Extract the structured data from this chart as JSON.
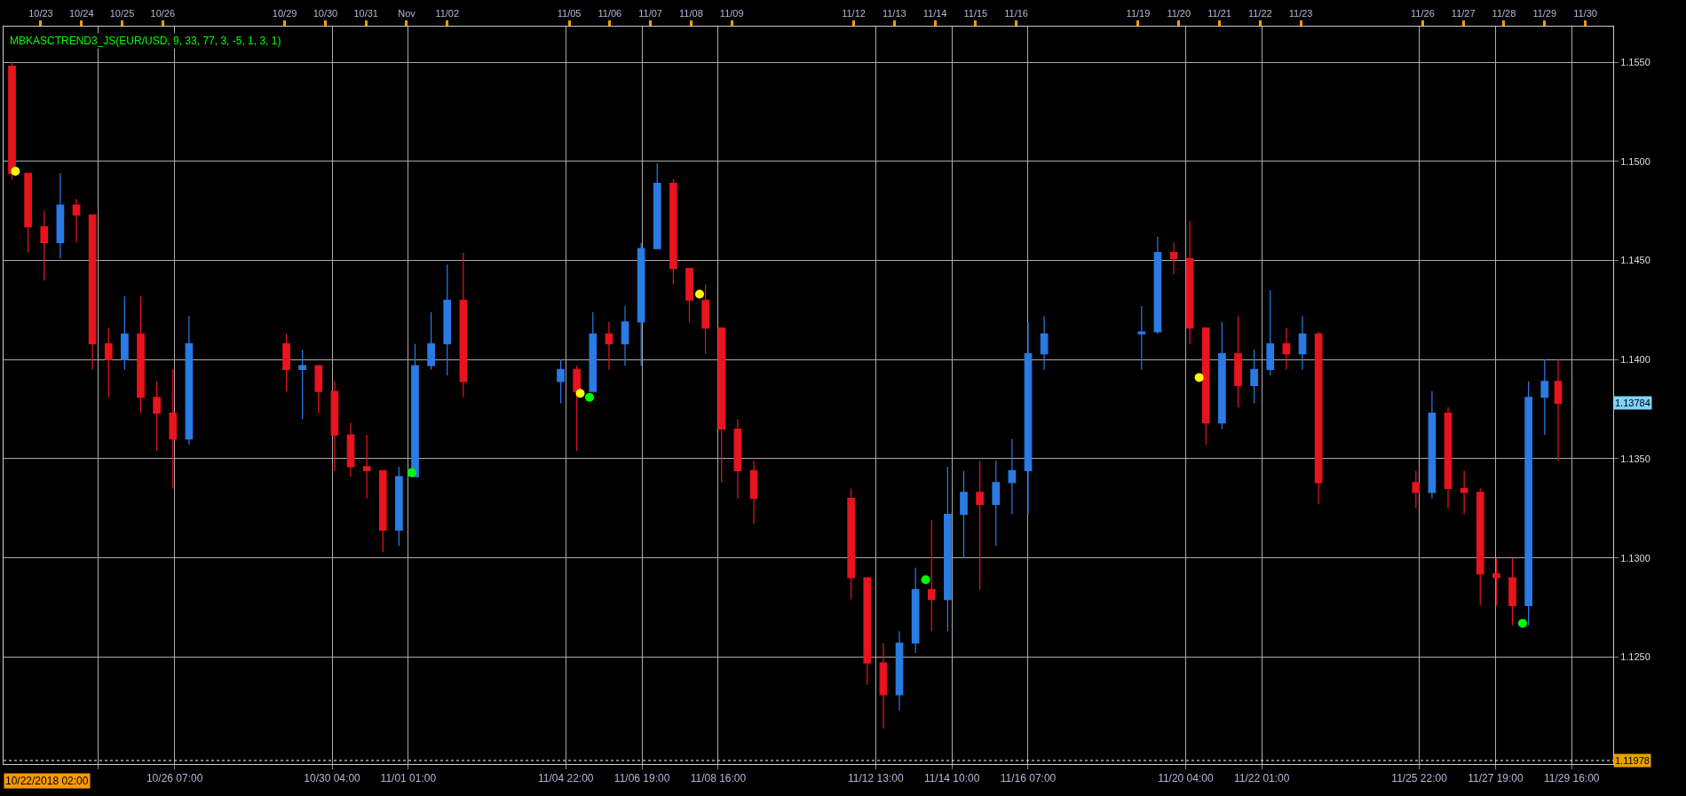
{
  "chart_data": {
    "type": "candlestick",
    "x": [
      "2018-10-22T07:00",
      "2018-10-22T16:30",
      "2018-10-23T02:00",
      "2018-10-23T11:30",
      "2018-10-23T21:00",
      "2018-10-24T06:30",
      "2018-10-24T16:00",
      "2018-10-25T01:30",
      "2018-10-25T11:00",
      "2018-10-25T20:30",
      "2018-10-26T06:00",
      "2018-10-26T15:30",
      "2018-10-29T01:00",
      "2018-10-29T10:30",
      "2018-10-29T20:00",
      "2018-10-30T05:30",
      "2018-10-30T15:00",
      "2018-10-31T00:30",
      "2018-10-31T10:00",
      "2018-10-31T19:30",
      "2018-11-01T05:00",
      "2018-11-01T14:30",
      "2018-11-02T00:00",
      "2018-11-02T09:30",
      "2018-11-04T19:00",
      "2018-11-05T04:30",
      "2018-11-05T14:00",
      "2018-11-05T23:30",
      "2018-11-06T09:00",
      "2018-11-06T18:30",
      "2018-11-07T04:00",
      "2018-11-07T13:30",
      "2018-11-07T23:00",
      "2018-11-08T08:30",
      "2018-11-08T18:00",
      "2018-11-09T03:30",
      "2018-11-09T13:00",
      "2018-11-11T22:30",
      "2018-11-12T08:00",
      "2018-11-12T17:30",
      "2018-11-13T03:00",
      "2018-11-13T12:30",
      "2018-11-13T22:00",
      "2018-11-14T07:30",
      "2018-11-14T17:00",
      "2018-11-15T02:30",
      "2018-11-15T12:00",
      "2018-11-15T21:30",
      "2018-11-16T07:00",
      "2018-11-16T16:30",
      "2018-11-19T02:00",
      "2018-11-19T11:30",
      "2018-11-19T21:00",
      "2018-11-20T06:30",
      "2018-11-20T16:00",
      "2018-11-21T01:30",
      "2018-11-21T11:00",
      "2018-11-21T20:30",
      "2018-11-22T06:00",
      "2018-11-22T15:30",
      "2018-11-23T01:00",
      "2018-11-23T10:30",
      "2018-11-25T20:00",
      "2018-11-26T05:30",
      "2018-11-26T15:00",
      "2018-11-27T00:30",
      "2018-11-27T10:00",
      "2018-11-27T19:30",
      "2018-11-28T05:00",
      "2018-11-28T14:30",
      "2018-11-29T00:00",
      "2018-11-29T08:00"
    ],
    "ohlc": [
      [
        1.1548,
        1.155,
        1.1491,
        1.1494
      ],
      [
        1.1494,
        1.1494,
        1.1454,
        1.1467
      ],
      [
        1.1467,
        1.1475,
        1.144,
        1.1459
      ],
      [
        1.1459,
        1.1494,
        1.1451,
        1.1478
      ],
      [
        1.1478,
        1.1481,
        1.1459,
        1.1473
      ],
      [
        1.1473,
        1.1473,
        1.1395,
        1.1408
      ],
      [
        1.1408,
        1.1416,
        1.1381,
        1.14
      ],
      [
        1.14,
        1.1432,
        1.1395,
        1.1413
      ],
      [
        1.1413,
        1.1432,
        1.1373,
        1.1381
      ],
      [
        1.1381,
        1.1389,
        1.1354,
        1.1373
      ],
      [
        1.1373,
        1.1395,
        1.1335,
        1.136
      ],
      [
        1.136,
        1.1422,
        1.1357,
        1.1408
      ],
      [
        1.1408,
        1.1413,
        1.1384,
        1.1395
      ],
      [
        1.1395,
        1.1405,
        1.137,
        1.1397
      ],
      [
        1.1397,
        1.1397,
        1.1373,
        1.1384
      ],
      [
        1.1384,
        1.1389,
        1.1344,
        1.1362
      ],
      [
        1.1362,
        1.1368,
        1.1341,
        1.1346
      ],
      [
        1.1346,
        1.1362,
        1.133,
        1.1344
      ],
      [
        1.1344,
        1.1344,
        1.1303,
        1.1314
      ],
      [
        1.1314,
        1.1346,
        1.1306,
        1.1341
      ],
      [
        1.1341,
        1.1408,
        1.1341,
        1.1397
      ],
      [
        1.1397,
        1.1424,
        1.1395,
        1.1408
      ],
      [
        1.1408,
        1.1448,
        1.1392,
        1.143
      ],
      [
        1.143,
        1.1454,
        1.1381,
        1.1389
      ],
      [
        1.1389,
        1.14,
        1.1378,
        1.1395
      ],
      [
        1.1395,
        1.1397,
        1.1354,
        1.1384
      ],
      [
        1.1384,
        1.1424,
        1.1384,
        1.1413
      ],
      [
        1.1413,
        1.1419,
        1.1395,
        1.1408
      ],
      [
        1.1408,
        1.1427,
        1.1397,
        1.1419
      ],
      [
        1.1419,
        1.1459,
        1.1397,
        1.1456
      ],
      [
        1.1456,
        1.1499,
        1.1456,
        1.1489
      ],
      [
        1.1489,
        1.1491,
        1.1438,
        1.1446
      ],
      [
        1.1446,
        1.1446,
        1.1419,
        1.143
      ],
      [
        1.143,
        1.1438,
        1.1403,
        1.1416
      ],
      [
        1.1416,
        1.1416,
        1.1338,
        1.1365
      ],
      [
        1.1365,
        1.137,
        1.133,
        1.1344
      ],
      [
        1.1344,
        1.1349,
        1.1317,
        1.133
      ],
      [
        1.133,
        1.1335,
        1.1279,
        1.129
      ],
      [
        1.129,
        1.129,
        1.1236,
        1.1247
      ],
      [
        1.1247,
        1.1257,
        1.1214,
        1.1231
      ],
      [
        1.1231,
        1.1263,
        1.1223,
        1.1257
      ],
      [
        1.1257,
        1.1295,
        1.1252,
        1.1284
      ],
      [
        1.1284,
        1.1319,
        1.1263,
        1.1279
      ],
      [
        1.1279,
        1.1346,
        1.1263,
        1.1322
      ],
      [
        1.1322,
        1.1344,
        1.13,
        1.1333
      ],
      [
        1.1333,
        1.1349,
        1.1284,
        1.1327
      ],
      [
        1.1327,
        1.1349,
        1.1306,
        1.1338
      ],
      [
        1.1338,
        1.136,
        1.1322,
        1.1344
      ],
      [
        1.1344,
        1.1419,
        1.1322,
        1.1403
      ],
      [
        1.1403,
        1.1422,
        1.1395,
        1.1413
      ],
      [
        1.1413,
        1.1427,
        1.1395,
        1.1414
      ],
      [
        1.1414,
        1.1462,
        1.1413,
        1.1454
      ],
      [
        1.1454,
        1.1459,
        1.1443,
        1.1451
      ],
      [
        1.1451,
        1.147,
        1.1408,
        1.1416
      ],
      [
        1.1416,
        1.1416,
        1.1357,
        1.1368
      ],
      [
        1.1368,
        1.1419,
        1.1365,
        1.1403
      ],
      [
        1.1403,
        1.1422,
        1.1376,
        1.1387
      ],
      [
        1.1387,
        1.1405,
        1.1378,
        1.1395
      ],
      [
        1.1395,
        1.1435,
        1.1392,
        1.1408
      ],
      [
        1.1408,
        1.1416,
        1.1395,
        1.1403
      ],
      [
        1.1403,
        1.1422,
        1.1395,
        1.1413
      ],
      [
        1.1413,
        1.1414,
        1.1327,
        1.1338
      ],
      [
        1.1338,
        1.1344,
        1.1325,
        1.1333
      ],
      [
        1.1333,
        1.1384,
        1.133,
        1.1373
      ],
      [
        1.1373,
        1.1376,
        1.1325,
        1.1335
      ],
      [
        1.1335,
        1.1344,
        1.1322,
        1.1333
      ],
      [
        1.1333,
        1.1335,
        1.1276,
        1.1292
      ],
      [
        1.1292,
        1.13,
        1.1276,
        1.129
      ],
      [
        1.129,
        1.13,
        1.1266,
        1.1276
      ],
      [
        1.1276,
        1.1389,
        1.1266,
        1.1381
      ],
      [
        1.1381,
        1.14,
        1.1362,
        1.1389
      ],
      [
        1.1389,
        1.14,
        1.1349,
        1.1378
      ]
    ],
    "series": [
      {
        "type": "scatter",
        "color": "#ffff00",
        "x": [
          "2018-10-22T09:00",
          "2018-11-05T06:30",
          "2018-11-08T05:00",
          "2018-11-20T12:00"
        ],
        "values": [
          1.1495,
          1.1383,
          1.1433,
          1.1391
        ]
      },
      {
        "type": "scatter",
        "color": "#00ff00",
        "x": [
          "2018-11-01T03:00",
          "2018-11-05T12:00",
          "2018-11-13T18:30",
          "2018-11-28T11:00"
        ],
        "values": [
          1.1343,
          1.1381,
          1.1289,
          1.1267
        ]
      }
    ],
    "marker": "circle",
    "xlim": [
      "2018-10-22T02:00",
      "2018-11-30T16:30"
    ],
    "xticks": [
      {
        "value": "2018-10-24T10:00",
        "label": null
      },
      {
        "value": "2018-10-26T07:00",
        "label": "10/26 07:00"
      },
      {
        "value": "2018-10-30T04:00",
        "label": "10/30 04:00"
      },
      {
        "value": "2018-11-01T01:00",
        "label": "11/01 01:00"
      },
      {
        "value": "2018-11-04T22:00",
        "label": "11/04 22:00"
      },
      {
        "value": "2018-11-06T19:00",
        "label": "11/06 19:00"
      },
      {
        "value": "2018-11-08T16:00",
        "label": "11/08 16:00"
      },
      {
        "value": "2018-11-12T13:00",
        "label": "11/12 13:00"
      },
      {
        "value": "2018-11-14T10:00",
        "label": "11/14 10:00"
      },
      {
        "value": "2018-11-16T07:00",
        "label": "11/16 07:00"
      },
      {
        "value": "2018-11-20T04:00",
        "label": "11/20 04:00"
      },
      {
        "value": "2018-11-22T01:00",
        "label": "11/22 01:00"
      },
      {
        "value": "2018-11-25T22:00",
        "label": "11/25 22:00"
      },
      {
        "value": "2018-11-27T19:00",
        "label": "11/27 19:00"
      },
      {
        "value": "2018-11-29T16:00",
        "label": "11/29 16:00"
      }
    ],
    "x2lim": [
      "2018-10-22T02:00",
      "2018-11-30T16:30"
    ],
    "x2ticks": [
      {
        "value": "2018-10-23",
        "label": "10/23"
      },
      {
        "value": "2018-10-24",
        "label": "10/24"
      },
      {
        "value": "2018-10-25",
        "label": "10/25"
      },
      {
        "value": "2018-10-26",
        "label": "10/26"
      },
      {
        "value": "2018-10-29",
        "label": "10/29"
      },
      {
        "value": "2018-10-30",
        "label": "10/30"
      },
      {
        "value": "2018-10-31",
        "label": "10/31"
      },
      {
        "value": "2018-11-01",
        "label": "Nov"
      },
      {
        "value": "2018-11-02",
        "label": "11/02"
      },
      {
        "value": "2018-11-05",
        "label": "11/05"
      },
      {
        "value": "2018-11-06",
        "label": "11/06"
      },
      {
        "value": "2018-11-07",
        "label": "11/07"
      },
      {
        "value": "2018-11-08",
        "label": "11/08"
      },
      {
        "value": "2018-11-09",
        "label": "11/09"
      },
      {
        "value": "2018-11-12",
        "label": "11/12"
      },
      {
        "value": "2018-11-13",
        "label": "11/13"
      },
      {
        "value": "2018-11-14",
        "label": "11/14"
      },
      {
        "value": "2018-11-15",
        "label": "11/15"
      },
      {
        "value": "2018-11-16",
        "label": "11/16"
      },
      {
        "value": "2018-11-19",
        "label": "11/19"
      },
      {
        "value": "2018-11-20",
        "label": "11/20"
      },
      {
        "value": "2018-11-21",
        "label": "11/21"
      },
      {
        "value": "2018-11-22",
        "label": "11/22"
      },
      {
        "value": "2018-11-23",
        "label": "11/23"
      },
      {
        "value": "2018-11-26",
        "label": "11/26"
      },
      {
        "value": "2018-11-27",
        "label": "11/27"
      },
      {
        "value": "2018-11-28",
        "label": "11/28"
      },
      {
        "value": "2018-11-29",
        "label": "11/29"
      },
      {
        "value": "2018-11-30",
        "label": "11/30"
      }
    ],
    "ylim": [
      1.1196,
      1.1568
    ],
    "yticks": [
      {
        "value": 1.125,
        "label": "1.1250"
      },
      {
        "value": 1.13,
        "label": "1.1300"
      },
      {
        "value": 1.135,
        "label": "1.1350"
      },
      {
        "value": 1.14,
        "label": "1.1400"
      },
      {
        "value": 1.145,
        "label": "1.1450"
      },
      {
        "value": 1.15,
        "label": "1.1500"
      },
      {
        "value": 1.155,
        "label": "1.1550"
      }
    ],
    "grid": true,
    "ref_lines": [
      {
        "axis": "y",
        "value": 1.11978,
        "label": "1.11978",
        "line_style": "dotted"
      }
    ],
    "annotations": [
      "MBKASCTREND3_JS(EUR/USD, 9, 33, 77, 3, -5, 1, 3, 1)",
      "10/22/2018 02:00",
      "1.13784"
    ]
  }
}
